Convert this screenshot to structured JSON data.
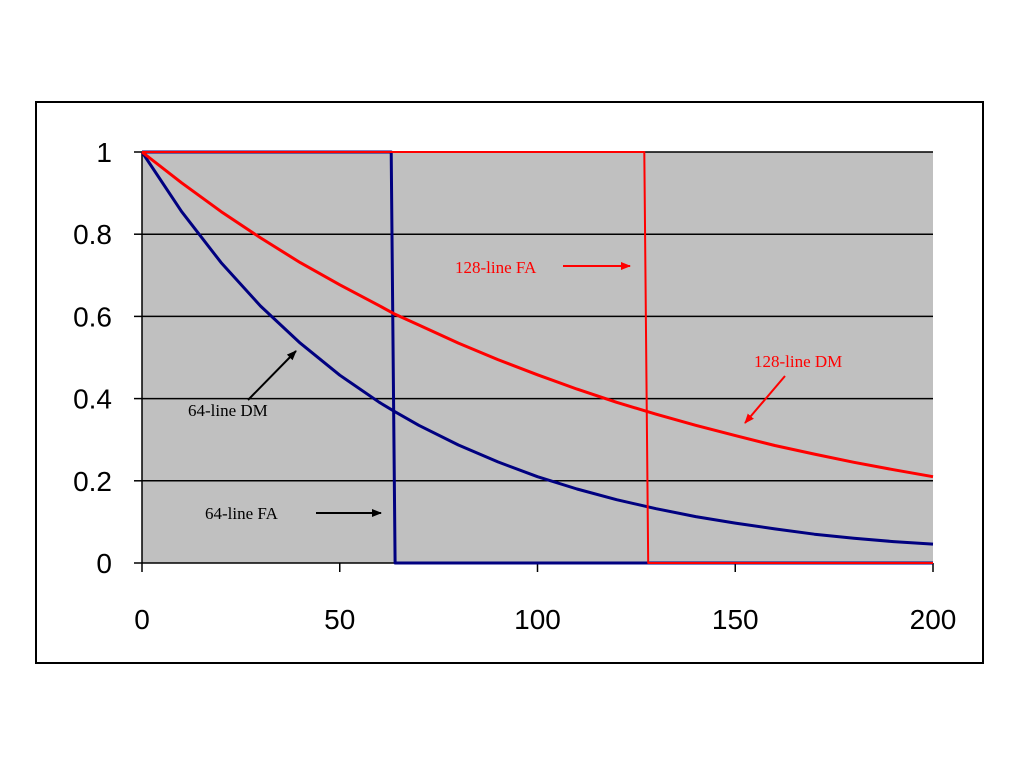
{
  "chart_data": {
    "type": "line",
    "title": "",
    "xlabel": "",
    "ylabel": "",
    "xlim": [
      0,
      200
    ],
    "ylim": [
      0,
      1
    ],
    "xticks": [
      "0",
      "50",
      "100",
      "150",
      "200"
    ],
    "yticks": [
      "0",
      "0.2",
      "0.4",
      "0.6",
      "0.8",
      "1"
    ],
    "grid": "horizontal",
    "plot_background": "#c0c0c0",
    "series": [
      {
        "name": "64-line DM",
        "color": "#000080",
        "kind": "decay",
        "x": [
          0,
          10,
          20,
          30,
          40,
          50,
          60,
          64,
          70,
          80,
          90,
          100,
          110,
          120,
          130,
          140,
          150,
          160,
          170,
          180,
          190,
          200
        ],
        "y": [
          1,
          0.855,
          0.731,
          0.625,
          0.535,
          0.457,
          0.391,
          0.368,
          0.335,
          0.287,
          0.246,
          0.21,
          0.18,
          0.154,
          0.132,
          0.113,
          0.097,
          0.083,
          0.07,
          0.06,
          0.052,
          0.046
        ]
      },
      {
        "name": "64-line FA",
        "color": "#000080",
        "kind": "step",
        "x": [
          0,
          63,
          64,
          200
        ],
        "y": [
          1,
          1,
          0,
          0
        ]
      },
      {
        "name": "128-line DM",
        "color": "#ff0000",
        "kind": "decay",
        "x": [
          0,
          10,
          20,
          30,
          40,
          50,
          60,
          64,
          70,
          80,
          90,
          100,
          110,
          120,
          128,
          130,
          140,
          150,
          160,
          170,
          180,
          190,
          200
        ],
        "y": [
          1,
          0.925,
          0.855,
          0.791,
          0.731,
          0.677,
          0.626,
          0.605,
          0.579,
          0.535,
          0.495,
          0.458,
          0.423,
          0.391,
          0.368,
          0.362,
          0.335,
          0.31,
          0.286,
          0.265,
          0.245,
          0.227,
          0.21
        ]
      },
      {
        "name": "128-line FA",
        "color": "#ff0000",
        "kind": "step",
        "x": [
          0,
          127,
          128,
          200
        ],
        "y": [
          1,
          1,
          0,
          0
        ]
      }
    ],
    "annotations": [
      {
        "text": "128-line FA",
        "color": "#ff0000",
        "arrow": "right"
      },
      {
        "text": "128-line DM",
        "color": "#ff0000",
        "arrow": "down-left"
      },
      {
        "text": "64-line DM",
        "color": "#000000",
        "arrow": "up-right"
      },
      {
        "text": "64-line FA",
        "color": "#000000",
        "arrow": "right"
      }
    ]
  }
}
